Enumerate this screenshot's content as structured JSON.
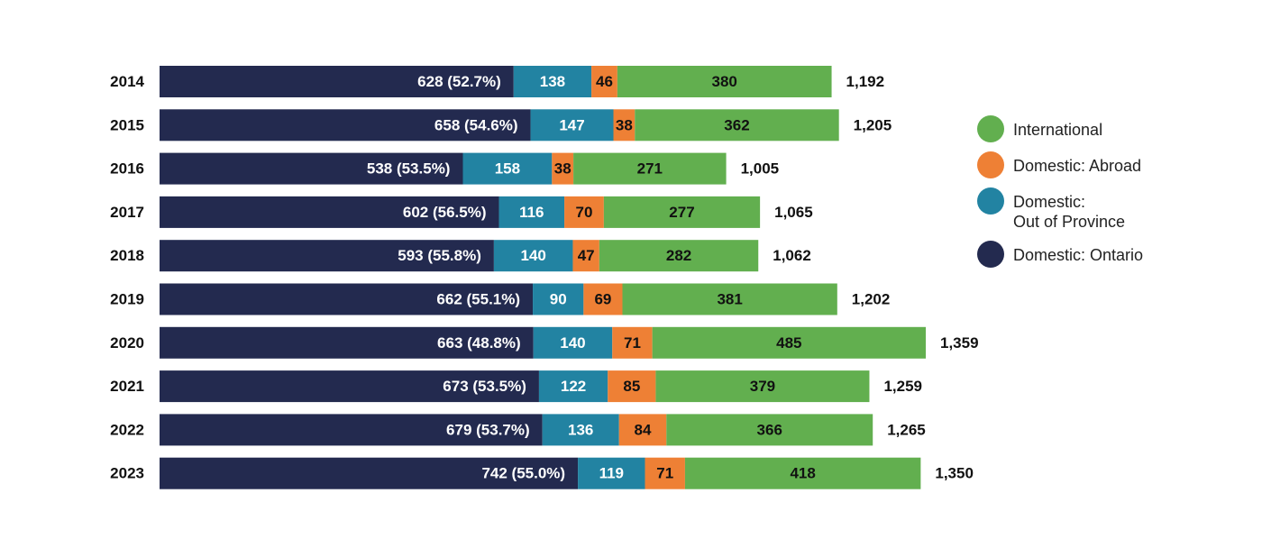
{
  "chart_data": {
    "type": "bar",
    "orientation": "horizontal",
    "stacked": true,
    "categories": [
      "2014",
      "2015",
      "2016",
      "2017",
      "2018",
      "2019",
      "2020",
      "2021",
      "2022",
      "2023"
    ],
    "series": [
      {
        "name": "Domestic: Ontario",
        "color": "#232a4f",
        "values": [
          628,
          658,
          538,
          602,
          593,
          662,
          663,
          673,
          679,
          742
        ],
        "labels": [
          "628 (52.7%)",
          "658 (54.6%)",
          "538 (53.5%)",
          "602 (56.5%)",
          "593 (55.8%)",
          "662 (55.1%)",
          "663 (48.8%)",
          "673 (53.5%)",
          "679 (53.7%)",
          "742 (55.0%)"
        ]
      },
      {
        "name": "Domestic:\nOut of Province",
        "color": "#2283a2",
        "values": [
          138,
          147,
          158,
          116,
          140,
          90,
          140,
          122,
          136,
          119
        ]
      },
      {
        "name": "Domestic: Abroad",
        "color": "#ee8035",
        "values": [
          46,
          38,
          38,
          70,
          47,
          69,
          71,
          85,
          84,
          71
        ]
      },
      {
        "name": "International",
        "color": "#62af4f",
        "values": [
          380,
          362,
          271,
          277,
          282,
          381,
          485,
          379,
          366,
          418
        ]
      }
    ],
    "totals": [
      "1,192",
      "1,205",
      "1,005",
      "1,065",
      "1,062",
      "1,202",
      "1,359",
      "1,259",
      "1,265",
      "1,350"
    ],
    "xlim": [
      0,
      1359
    ],
    "legend": "right",
    "grid": false
  },
  "legend": [
    {
      "label": "International",
      "color": "#62af4f"
    },
    {
      "label": "Domestic: Abroad",
      "color": "#ee8035"
    },
    {
      "label": "Domestic:\nOut of Province",
      "color": "#2283a2"
    },
    {
      "label": "Domestic: Ontario",
      "color": "#232a4f"
    }
  ]
}
